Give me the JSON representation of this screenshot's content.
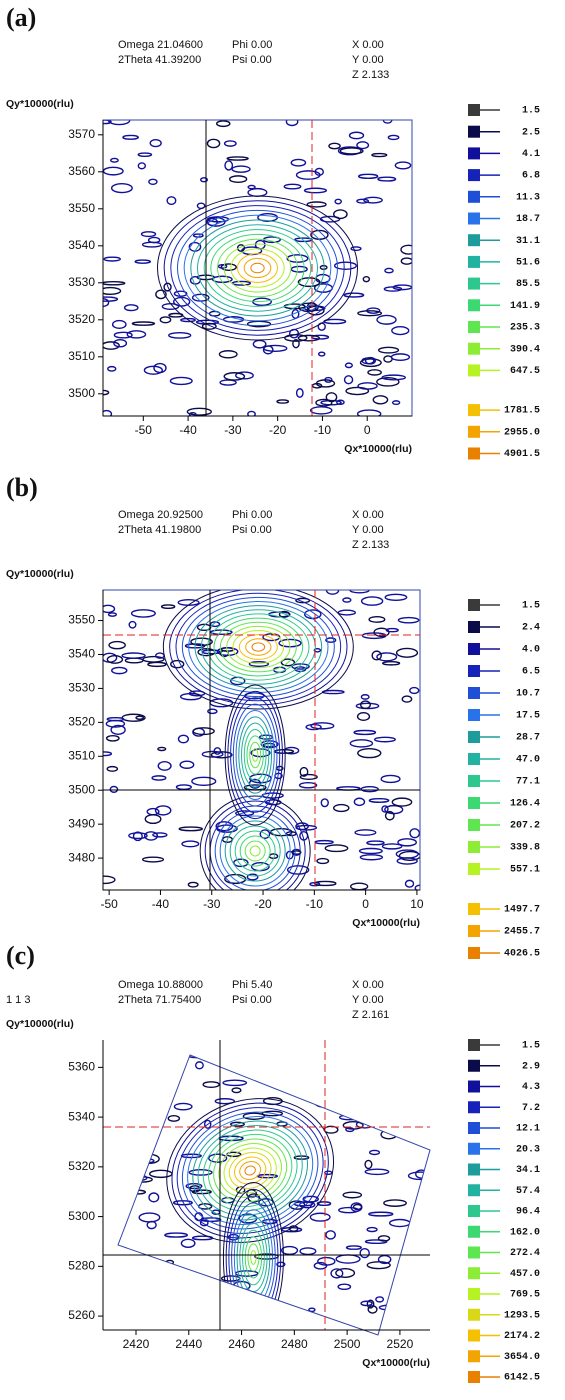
{
  "chart_data": [
    {
      "type": "contour",
      "label": "(a)",
      "info": [
        "Omega 21.04600",
        "Phi 0.00",
        "X 0.00",
        "2Theta 41.39200",
        "Psi 0.00",
        "Y 0.00",
        "Z 2.133"
      ],
      "y_label": "Qy*10000(rlu)",
      "x_label": "Qx*10000(rlu)",
      "xlim": [
        -59,
        10
      ],
      "xticks": [
        -50,
        -40,
        -30,
        -20,
        -10,
        0
      ],
      "ylim": [
        3494,
        3574
      ],
      "yticks": [
        3500,
        3510,
        3520,
        3530,
        3540,
        3550,
        3560,
        3570
      ],
      "levels": [
        1.5,
        2.5,
        4.1,
        6.8,
        11.3,
        18.7,
        31.1,
        51.6,
        85.5,
        141.9,
        235.3,
        390.4,
        647.5,
        1781.5,
        {
          "value": 2955,
          "label": "2955.0"
        },
        4901.5
      ],
      "colors": [
        "#3a3a3a",
        "#0b0b4a",
        "#10109a",
        "#1622b8",
        "#1f4fd6",
        "#2a72ea",
        "#1e9c9c",
        "#22b2a2",
        "#2ec88e",
        "#3cd872",
        "#5ee650",
        "#8cec36",
        "#b6f224",
        "#f4c000",
        "#f4a400",
        "#e88000"
      ]
    },
    {
      "type": "contour",
      "label": "(b)",
      "info": [
        "Omega 20.92500",
        "Phi 0.00",
        "X 0.00",
        "2Theta 41.19800",
        "Psi 0.00",
        "Y 0.00",
        "Z 2.133"
      ],
      "y_label": "Qy*10000(rlu)",
      "x_label": "Qx*10000(rlu)",
      "xlim": [
        -51.2,
        10.6
      ],
      "xticks": [
        -50,
        -40,
        -30,
        -20,
        -10,
        0,
        10
      ],
      "ylim": [
        3470.6,
        3559
      ],
      "yticks": [
        3480,
        3490,
        3500,
        3510,
        3520,
        3530,
        3540,
        3550
      ],
      "levels": [
        1.5,
        2.4,
        {
          "value": 4,
          "label": "4.0"
        },
        6.5,
        10.7,
        17.5,
        28.7,
        {
          "value": 47,
          "label": "47.0"
        },
        77.1,
        126.4,
        207.2,
        339.8,
        557.1,
        1497.7,
        2455.7,
        4026.5
      ],
      "colors": [
        "#3a3a3a",
        "#0b0b4a",
        "#10109a",
        "#1622b8",
        "#1f4fd6",
        "#2a72ea",
        "#1e9c9c",
        "#22b2a2",
        "#2ec88e",
        "#3cd872",
        "#5ee650",
        "#8cec36",
        "#b6f224",
        "#f4c000",
        "#f4a400",
        "#e88000"
      ]
    },
    {
      "type": "contour",
      "label": "(c)",
      "note": "1 1 3",
      "info": [
        "Omega 10.88000",
        "Phi 5.40",
        "X 0.00",
        "2Theta 71.75400",
        "Psi 0.00",
        "Y 0.00",
        "Z 2.161"
      ],
      "y_label": "Qy*10000(rlu)",
      "x_label": "Qx*10000(rlu)",
      "xlim": [
        2407.5,
        2531.4
      ],
      "xticks": [
        2420,
        2440,
        2460,
        2480,
        2500,
        2520
      ],
      "ylim": [
        5254.4,
        5371
      ],
      "yticks": [
        5260,
        5280,
        5300,
        5320,
        5340,
        5360
      ],
      "levels": [
        1.5,
        2.9,
        4.3,
        7.2,
        12.1,
        20.3,
        34.1,
        57.4,
        96.4,
        {
          "value": 162,
          "label": "162.0"
        },
        272.4,
        {
          "value": 457,
          "label": "457.0"
        },
        769.5,
        1293.5,
        2174.2,
        {
          "value": 3654,
          "label": "3654.0"
        },
        6142.5
      ],
      "colors": [
        "#3a3a3a",
        "#0b0b4a",
        "#10109a",
        "#1622b8",
        "#1f4fd6",
        "#2a72ea",
        "#1e9c9c",
        "#22b2a2",
        "#2ec88e",
        "#3cd872",
        "#5ee650",
        "#8cec36",
        "#b6f224",
        "#d8d818",
        "#f4c000",
        "#f4a400",
        "#e88000"
      ]
    }
  ]
}
